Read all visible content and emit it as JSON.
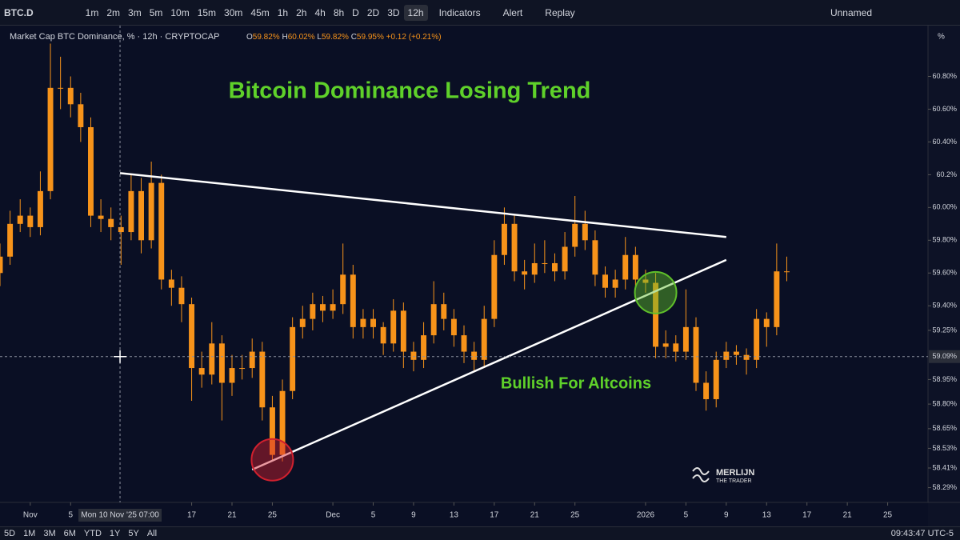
{
  "toolbar": {
    "symbol": "BTC.D",
    "intervals": [
      "1m",
      "2m",
      "3m",
      "5m",
      "10m",
      "15m",
      "30m",
      "45m",
      "1h",
      "2h",
      "4h",
      "8h",
      "D",
      "2D",
      "3D",
      "12h"
    ],
    "buttons": [
      "Indicators",
      "Alert",
      "Replay"
    ],
    "layout_name": "Unnamed"
  },
  "bottom_bar": {
    "ranges": [
      "5D",
      "1M",
      "3M",
      "6M",
      "YTD",
      "1Y",
      "5Y",
      "All"
    ],
    "time": "09:43:47 UTC-5"
  },
  "chart_data": {
    "type": "candlestick",
    "legend_title": "Market Cap BTC Dominance, % · 12h · CRYPTOCAP",
    "ohlc_legend": {
      "O": "59.82%",
      "H": "60.02%",
      "L": "59.82%",
      "C": "59.95%",
      "change": "+0.12 (+0.21%)"
    },
    "title": "Bitcoin Dominance Losing Trend",
    "subtitle": "Bullish For Altcoins",
    "watermark": [
      "MERLIJN",
      "THE TRADER"
    ],
    "axis_unit": "%",
    "xlim": [
      -3,
      89
    ],
    "ylim": [
      58.2,
      61.11
    ],
    "xticks": [
      {
        "value": 0,
        "label": "Nov"
      },
      {
        "value": 4,
        "label": "5"
      },
      {
        "value": 16,
        "label": "17"
      },
      {
        "value": 20,
        "label": "21"
      },
      {
        "value": 24,
        "label": "25"
      },
      {
        "value": 30,
        "label": "Dec"
      },
      {
        "value": 34,
        "label": "5"
      },
      {
        "value": 38,
        "label": "9"
      },
      {
        "value": 42,
        "label": "13"
      },
      {
        "value": 46,
        "label": "17"
      },
      {
        "value": 50,
        "label": "21"
      },
      {
        "value": 54,
        "label": "25"
      },
      {
        "value": 61,
        "label": "2026"
      },
      {
        "value": 65,
        "label": "5"
      },
      {
        "value": 69,
        "label": "9"
      },
      {
        "value": 73,
        "label": "13"
      },
      {
        "value": 77,
        "label": "17"
      },
      {
        "value": 81,
        "label": "21"
      },
      {
        "value": 85,
        "label": "25"
      }
    ],
    "yticks": [
      {
        "value": 60.8,
        "label": "60.80%"
      },
      {
        "value": 60.6,
        "label": "60.60%"
      },
      {
        "value": 60.4,
        "label": "60.40%"
      },
      {
        "value": 60.2,
        "label": "60.2%"
      },
      {
        "value": 60.0,
        "label": "60.00%"
      },
      {
        "value": 59.8,
        "label": "59.80%"
      },
      {
        "value": 59.6,
        "label": "59.60%"
      },
      {
        "value": 59.4,
        "label": "59.40%"
      },
      {
        "value": 59.25,
        "label": "59.25%"
      },
      {
        "value": 58.95,
        "label": "58.95%"
      },
      {
        "value": 58.8,
        "label": "58.80%"
      },
      {
        "value": 58.65,
        "label": "58.65%"
      },
      {
        "value": 58.53,
        "label": "58.53%"
      },
      {
        "value": 58.41,
        "label": "58.41%"
      },
      {
        "value": 58.29,
        "label": "58.29%"
      }
    ],
    "crosshair": {
      "x": 8.9,
      "y": 59.09,
      "x_label": "Mon 10 Nov '25 07:00",
      "y_label": "59.09%"
    },
    "trend_lines": [
      {
        "x": [
          8.9,
          69
        ],
        "y": [
          60.21,
          59.82
        ]
      },
      {
        "x": [
          22,
          69
        ],
        "y": [
          58.4,
          59.68
        ]
      }
    ],
    "circles": [
      {
        "x": 24,
        "y": 58.46,
        "color": "#d0202e"
      },
      {
        "x": 62,
        "y": 59.48,
        "color": "#5fbf2a"
      }
    ],
    "series": [
      {
        "color": "#f7931a",
        "x": [
          -3,
          -2,
          -1,
          0,
          1,
          2,
          3,
          4,
          5,
          6,
          7,
          8,
          9,
          10,
          11,
          12,
          13,
          14,
          15,
          16,
          17,
          18,
          19,
          20,
          21,
          22,
          23,
          24,
          25,
          26,
          27,
          28,
          29,
          30,
          31,
          32,
          33,
          34,
          35,
          36,
          37,
          38,
          39,
          40,
          41,
          42,
          43,
          44,
          45,
          46,
          47,
          48,
          49,
          50,
          51,
          52,
          53,
          54,
          55,
          56,
          57,
          58,
          59,
          60,
          61,
          62,
          63,
          64,
          65,
          66,
          67,
          68,
          69,
          70,
          71,
          72,
          73,
          74,
          75
        ],
        "ohlc": [
          [
            59.6,
            59.78,
            59.52,
            59.7
          ],
          [
            59.7,
            59.98,
            59.65,
            59.9
          ],
          [
            59.9,
            60.05,
            59.85,
            59.95
          ],
          [
            59.95,
            60.0,
            59.82,
            59.88
          ],
          [
            59.88,
            60.22,
            59.83,
            60.1
          ],
          [
            60.1,
            61.0,
            60.05,
            60.73
          ],
          [
            60.73,
            60.92,
            60.6,
            60.73
          ],
          [
            60.73,
            60.8,
            60.55,
            60.63
          ],
          [
            60.63,
            60.7,
            60.4,
            60.49
          ],
          [
            60.49,
            60.55,
            59.88,
            59.95
          ],
          [
            59.95,
            60.05,
            59.85,
            59.93
          ],
          [
            59.93,
            60.0,
            59.8,
            59.88
          ],
          [
            59.88,
            59.95,
            59.65,
            59.85
          ],
          [
            59.85,
            60.2,
            59.8,
            60.1
          ],
          [
            60.1,
            60.18,
            59.72,
            59.8
          ],
          [
            59.8,
            60.28,
            59.75,
            60.15
          ],
          [
            60.15,
            60.2,
            59.5,
            59.56
          ],
          [
            59.56,
            59.62,
            59.4,
            59.51
          ],
          [
            59.51,
            59.58,
            59.3,
            59.41
          ],
          [
            59.41,
            59.45,
            58.82,
            59.02
          ],
          [
            59.02,
            59.12,
            58.9,
            58.98
          ],
          [
            58.98,
            59.3,
            58.92,
            59.17
          ],
          [
            59.17,
            59.22,
            58.7,
            58.93
          ],
          [
            58.93,
            59.1,
            58.85,
            59.02
          ],
          [
            59.02,
            59.1,
            58.95,
            59.02
          ],
          [
            59.02,
            59.2,
            58.96,
            59.12
          ],
          [
            59.12,
            59.18,
            58.7,
            58.78
          ],
          [
            58.78,
            58.85,
            58.45,
            58.49
          ],
          [
            58.49,
            58.95,
            58.45,
            58.88
          ],
          [
            58.88,
            59.33,
            58.83,
            59.27
          ],
          [
            59.27,
            59.4,
            59.2,
            59.32
          ],
          [
            59.32,
            59.48,
            59.25,
            59.41
          ],
          [
            59.41,
            59.46,
            59.3,
            59.37
          ],
          [
            59.37,
            59.5,
            59.32,
            59.41
          ],
          [
            59.41,
            59.78,
            59.35,
            59.59
          ],
          [
            59.59,
            59.65,
            59.2,
            59.27
          ],
          [
            59.27,
            59.38,
            59.2,
            59.32
          ],
          [
            59.32,
            59.38,
            59.2,
            59.27
          ],
          [
            59.27,
            59.3,
            59.1,
            59.17
          ],
          [
            59.17,
            59.44,
            59.12,
            59.37
          ],
          [
            59.37,
            59.42,
            59.02,
            59.12
          ],
          [
            59.12,
            59.18,
            59.0,
            59.07
          ],
          [
            59.07,
            59.3,
            59.02,
            59.22
          ],
          [
            59.22,
            59.55,
            59.17,
            59.41
          ],
          [
            59.41,
            59.48,
            59.25,
            59.32
          ],
          [
            59.32,
            59.38,
            59.15,
            59.22
          ],
          [
            59.22,
            59.28,
            59.05,
            59.12
          ],
          [
            59.12,
            59.18,
            59.0,
            59.07
          ],
          [
            59.07,
            59.4,
            59.02,
            59.32
          ],
          [
            59.32,
            59.8,
            59.27,
            59.71
          ],
          [
            59.71,
            60.0,
            59.65,
            59.9
          ],
          [
            59.9,
            59.96,
            59.55,
            59.61
          ],
          [
            59.61,
            59.68,
            59.5,
            59.59
          ],
          [
            59.59,
            59.78,
            59.54,
            59.66
          ],
          [
            59.66,
            59.8,
            59.6,
            59.66
          ],
          [
            59.66,
            59.72,
            59.55,
            59.61
          ],
          [
            59.61,
            59.85,
            59.56,
            59.76
          ],
          [
            59.76,
            60.07,
            59.7,
            59.9
          ],
          [
            59.9,
            59.98,
            59.74,
            59.8
          ],
          [
            59.8,
            59.86,
            59.52,
            59.59
          ],
          [
            59.59,
            59.64,
            59.45,
            59.51
          ],
          [
            59.51,
            59.62,
            59.45,
            59.56
          ],
          [
            59.56,
            59.82,
            59.5,
            59.71
          ],
          [
            59.71,
            59.76,
            59.5,
            59.56
          ],
          [
            59.56,
            59.62,
            59.48,
            59.54
          ],
          [
            59.54,
            59.6,
            59.08,
            59.15
          ],
          [
            59.15,
            59.25,
            59.08,
            59.17
          ],
          [
            59.17,
            59.22,
            59.06,
            59.12
          ],
          [
            59.12,
            59.5,
            59.07,
            59.27
          ],
          [
            59.27,
            59.33,
            58.88,
            58.93
          ],
          [
            58.93,
            59.0,
            58.76,
            58.83
          ],
          [
            58.83,
            59.12,
            58.78,
            59.07
          ],
          [
            59.07,
            59.18,
            59.02,
            59.12
          ],
          [
            59.12,
            59.16,
            59.04,
            59.1
          ],
          [
            59.1,
            59.14,
            58.98,
            59.07
          ],
          [
            59.07,
            59.38,
            59.02,
            59.32
          ],
          [
            59.32,
            59.36,
            59.15,
            59.27
          ],
          [
            59.27,
            59.78,
            59.22,
            59.61
          ],
          [
            59.61,
            59.7,
            59.55,
            59.61
          ]
        ]
      }
    ]
  }
}
